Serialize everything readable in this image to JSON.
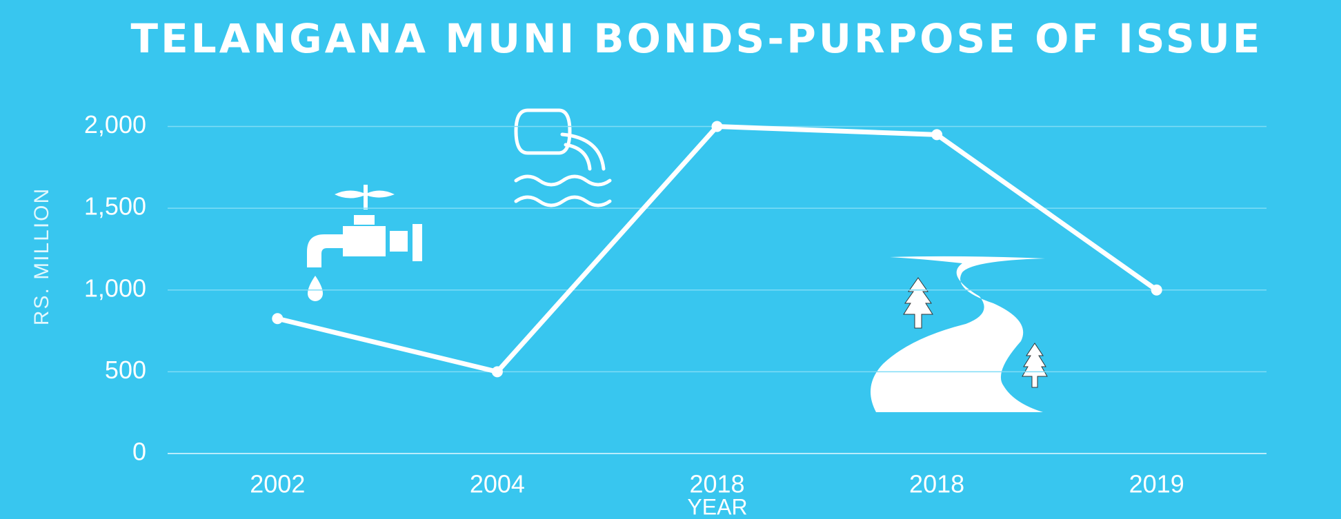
{
  "chart_data": {
    "type": "line",
    "title": "TELANGANA MUNI BONDS-PURPOSE OF ISSUE",
    "x_label": "YEAR",
    "y_label": "RS. MILLION",
    "categories": [
      "2002",
      "2004",
      "2018",
      "2018",
      "2019"
    ],
    "values": [
      825,
      500,
      2000,
      1950,
      1000
    ],
    "color": "#ffffff",
    "ylim": [
      0,
      2000
    ],
    "yticks": [
      0,
      500,
      {
        "value": 1000,
        "label": "1,000"
      },
      {
        "value": 1500,
        "label": "1,500"
      },
      {
        "value": 2000,
        "label": "2,000"
      }
    ],
    "grid": true
  }
}
